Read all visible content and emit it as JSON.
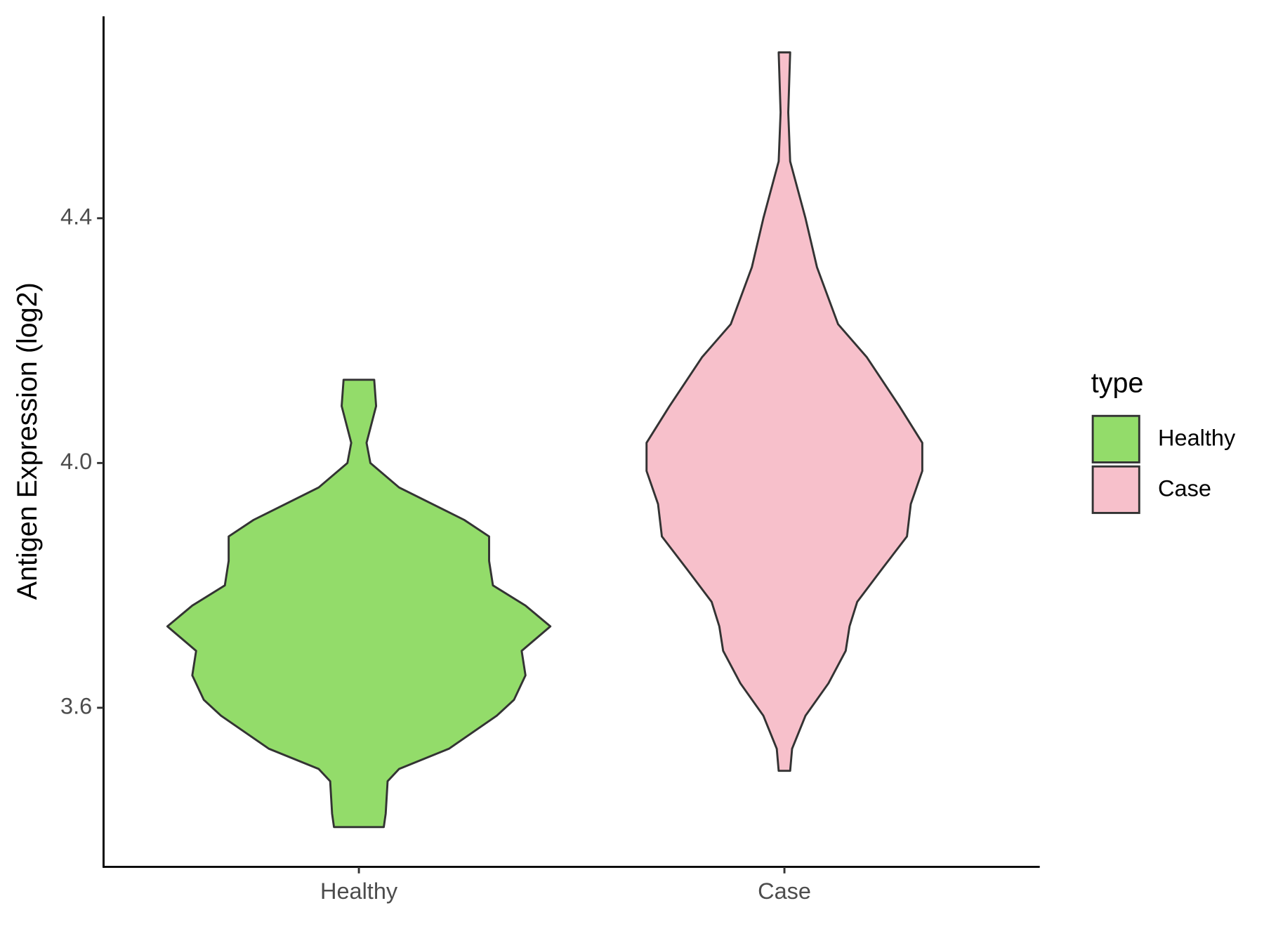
{
  "chart_data": {
    "type": "violin",
    "y_label": "Antigen Expression (log2)",
    "legend_title": "type",
    "legend_position": "right",
    "categories": [
      "Healthy",
      "Case"
    ],
    "series": [
      {
        "name": "Healthy",
        "color": "#93dc6a",
        "y": [
          3.405,
          3.427,
          3.48,
          3.5,
          3.533,
          3.587,
          3.613,
          3.653,
          3.693,
          3.733,
          3.767,
          3.8,
          3.84,
          3.88,
          3.907,
          3.96,
          4.0,
          4.033,
          4.093,
          4.136
        ],
        "density": [
          0.13,
          0.14,
          0.15,
          0.21,
          0.47,
          0.72,
          0.81,
          0.87,
          0.85,
          1.0,
          0.87,
          0.7,
          0.68,
          0.68,
          0.55,
          0.21,
          0.06,
          0.04,
          0.09,
          0.08
        ]
      },
      {
        "name": "Case",
        "color": "#f7c0cb",
        "y": [
          3.497,
          3.533,
          3.587,
          3.64,
          3.693,
          3.733,
          3.773,
          3.827,
          3.88,
          3.933,
          3.987,
          4.033,
          4.093,
          4.173,
          4.227,
          4.32,
          4.4,
          4.493,
          4.573,
          4.671
        ],
        "density": [
          0.03,
          0.04,
          0.11,
          0.23,
          0.32,
          0.34,
          0.38,
          0.51,
          0.64,
          0.66,
          0.72,
          0.72,
          0.6,
          0.43,
          0.28,
          0.17,
          0.11,
          0.03,
          0.02,
          0.03
        ]
      }
    ],
    "ylim": [
      3.34,
      4.73
    ],
    "yticks": [
      3.6,
      {
        "value": 4.0,
        "label": "4.0"
      },
      4.4
    ]
  }
}
